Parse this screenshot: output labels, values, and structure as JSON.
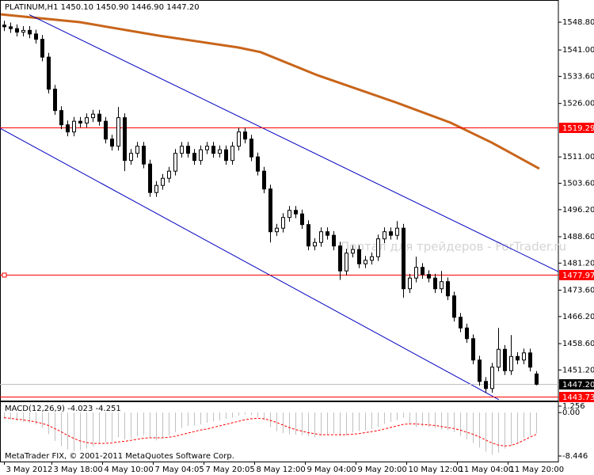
{
  "chart_data": [
    {
      "type": "candlestick",
      "title": "PLATINUM,H1  1450.10 1450.90 1446.90 1447.20",
      "watermark": "Портал для трейдеров - ForTrader.ru",
      "x": [
        0,
        2,
        4,
        6,
        8,
        10,
        12,
        14,
        16,
        18,
        20,
        22,
        24,
        26,
        28,
        30,
        32,
        34,
        36,
        38,
        40,
        42,
        44,
        46,
        48,
        50,
        52,
        54,
        56,
        58,
        60,
        62,
        64,
        66,
        68,
        70,
        72,
        74,
        76,
        78,
        80,
        82,
        84,
        86,
        88,
        90,
        92,
        94,
        96,
        98,
        100,
        102,
        104,
        106,
        108,
        110,
        112,
        114,
        116,
        118,
        120,
        122,
        124,
        126,
        128,
        130,
        132,
        134,
        136,
        138,
        140,
        142,
        144,
        146,
        148,
        150,
        152,
        154,
        156,
        158,
        160,
        162,
        164,
        166,
        168
      ],
      "open": [
        1548,
        1547.5,
        1547,
        1546,
        1546.5,
        1545.5,
        1544,
        1539,
        1530,
        1524,
        1520,
        1518,
        1521,
        1520.5,
        1522,
        1523,
        1521,
        1516,
        1514,
        1522,
        1510,
        1512,
        1514,
        1509,
        1501,
        1503,
        1505,
        1507,
        1512,
        1514,
        1512,
        1510,
        1513,
        1514,
        1512,
        1513,
        1510,
        1514,
        1518,
        1516,
        1511,
        1507,
        1502,
        1490,
        1491,
        1494,
        1496,
        1495,
        1492,
        1486,
        1487,
        1490,
        1489,
        1486,
        1479,
        1484,
        1485,
        1481,
        1482,
        1483,
        1488,
        1490,
        1489,
        1491,
        1474,
        1477,
        1480,
        1478,
        1477,
        1474,
        1476,
        1472,
        1466,
        1463,
        1460,
        1454,
        1448,
        1446,
        1452,
        1457,
        1451,
        1455,
        1454,
        1456,
        1450.1
      ],
      "high": [
        1549.2,
        1548.7,
        1548.2,
        1547.7,
        1547.7,
        1546.7,
        1545.2,
        1540.2,
        1531.2,
        1525.2,
        1521.2,
        1522.2,
        1522.2,
        1523.2,
        1524.2,
        1524.2,
        1522.2,
        1517.2,
        1525,
        1523.2,
        1513.2,
        1515.2,
        1515.2,
        1510.2,
        1504.2,
        1506.2,
        1508.2,
        1513.2,
        1515.2,
        1515.2,
        1513.2,
        1514.2,
        1515.2,
        1515.2,
        1514.2,
        1514.2,
        1515.2,
        1519.2,
        1519.2,
        1517.2,
        1512.2,
        1508.2,
        1503.2,
        1492.2,
        1495.2,
        1497.2,
        1497.2,
        1496.2,
        1493.2,
        1488.2,
        1491.2,
        1491.2,
        1490.2,
        1487.2,
        1485.2,
        1486.2,
        1486.2,
        1483.2,
        1484.2,
        1489.2,
        1491.2,
        1491.2,
        1493,
        1492.2,
        1478.2,
        1483,
        1481.2,
        1479.2,
        1478.2,
        1479,
        1477.2,
        1473.2,
        1467.2,
        1464.2,
        1461.2,
        1455.2,
        1449.2,
        1453.2,
        1463,
        1458.2,
        1461,
        1456.2,
        1457.2,
        1457.2,
        1450.9
      ],
      "low": [
        1546.3,
        1545.8,
        1544.8,
        1544.8,
        1544.3,
        1542.8,
        1537.8,
        1528.8,
        1522.8,
        1518.8,
        1516.8,
        1516.8,
        1519.3,
        1519.3,
        1520.8,
        1519.8,
        1514.8,
        1512.8,
        1512.8,
        1507,
        1508.8,
        1510.8,
        1507.8,
        1499.8,
        1499.8,
        1501.8,
        1503.8,
        1505.8,
        1510.8,
        1510.8,
        1508.8,
        1508.8,
        1511.8,
        1510.8,
        1510.8,
        1508.8,
        1508.8,
        1512.8,
        1514.8,
        1509.8,
        1505.8,
        1500.8,
        1487,
        1488.8,
        1489.8,
        1492.8,
        1493.8,
        1490.8,
        1484.8,
        1484.8,
        1485.8,
        1487.8,
        1484.8,
        1476.5,
        1477.8,
        1482.8,
        1479.8,
        1479.8,
        1480.8,
        1481.8,
        1486.8,
        1487.8,
        1487.8,
        1471.5,
        1472.8,
        1475.8,
        1476.8,
        1475.8,
        1472.8,
        1472.8,
        1470.8,
        1464.8,
        1461.8,
        1458.8,
        1452.8,
        1446.8,
        1444.8,
        1444.8,
        1450.8,
        1449.8,
        1449.8,
        1452.8,
        1452.8,
        1450.8,
        1446.9
      ],
      "close": [
        1547.5,
        1547,
        1546,
        1546.5,
        1545.5,
        1544,
        1539,
        1530,
        1524,
        1520,
        1518,
        1521,
        1520.5,
        1522,
        1523,
        1521,
        1516,
        1514,
        1522,
        1510,
        1512,
        1514,
        1509,
        1501,
        1503,
        1505,
        1507,
        1512,
        1514,
        1512,
        1510,
        1513,
        1514,
        1512,
        1513,
        1510,
        1514,
        1518,
        1516,
        1511,
        1507,
        1502,
        1490,
        1491,
        1494,
        1496,
        1495,
        1492,
        1486,
        1487,
        1490,
        1489,
        1486,
        1479,
        1484,
        1485,
        1481,
        1482,
        1483,
        1488,
        1490,
        1489,
        1491,
        1474,
        1477,
        1480,
        1478,
        1477,
        1474,
        1476,
        1472,
        1466,
        1463,
        1460,
        1454,
        1448,
        1446,
        1452,
        1457,
        1451,
        1455,
        1454,
        1456,
        1452,
        1447.2
      ],
      "up_color": "#ffffff",
      "down_color": "#000000",
      "outline_color": "#000000",
      "ma": {
        "x": [
          -1,
          24,
          49,
          74,
          81,
          99,
          124,
          141,
          154,
          169
        ],
        "values": [
          1551.0,
          1548.8,
          1545.0,
          1541.7,
          1540.4,
          1533.9,
          1526.2,
          1520.6,
          1515.0,
          1507.7
        ],
        "color": "#c8651b"
      },
      "trendlines": [
        {
          "x": [
            8,
            175
          ],
          "y": [
            1550.9,
            1478.8
          ],
          "color": "#0000c0"
        },
        {
          "x": [
            -1.25,
            156.25
          ],
          "y": [
            1519.04,
            1442.85
          ],
          "color": "#0000c0"
        }
      ],
      "hlines": [
        {
          "price": 1519.29,
          "color": "#ff0000",
          "box": "#ff0000"
        },
        {
          "price": 1477.97,
          "color": "#ff0000",
          "box": "#ff0000",
          "handle": true
        },
        {
          "price": {
            "value": 1447.2,
            "label": "1447.20"
          },
          "color": "#c0c0c0",
          "box": "#000000"
        },
        {
          "price": 1443.73,
          "color": "#ff0000",
          "box": "#ff0000"
        }
      ],
      "xlim": [
        -1.25,
        175
      ],
      "ylim": [
        1442.62,
        1554.58
      ],
      "yticks": [
        {
          "value": 1548.8,
          "label": "1548.80"
        },
        {
          "value": 1541,
          "label": "1541.00"
        },
        {
          "value": 1533.6,
          "label": "1533.60"
        },
        {
          "value": 1526,
          "label": "1526.00"
        },
        {
          "value": 1511,
          "label": "1511.00"
        },
        {
          "value": 1503.6,
          "label": "1503.60"
        },
        {
          "value": 1496.2,
          "label": "1496.20"
        },
        {
          "value": 1488.6,
          "label": "1488.60"
        },
        {
          "value": 1481.2,
          "label": "1481.20"
        },
        {
          "value": 1473.6,
          "label": "1473.60"
        },
        {
          "value": 1466.2,
          "label": "1466.20"
        },
        {
          "value": 1458.6,
          "label": "1458.60"
        },
        {
          "value": 1451.2,
          "label": "1451.20"
        }
      ]
    },
    {
      "type": "macd",
      "title": "MACD(12,26,9) -4.023 -4.251",
      "copyright": "MetaTrader FIX, © 2001-2011 MetaQuotes Software Corp.",
      "series": [
        {
          "kind": "histogram",
          "color": "#c0c0c0",
          "values": [
            -1.2,
            -1.4,
            -1.6,
            -1.8,
            -2.0,
            -2.3,
            -3.0,
            -4.2,
            -5.5,
            -6.5,
            -7.2,
            -7.5,
            -7.3,
            -7.0,
            -6.6,
            -6.0,
            -5.8,
            -5.6,
            -4.8,
            -5.2,
            -5.0,
            -4.6,
            -4.4,
            -5.0,
            -5.4,
            -5.0,
            -4.5,
            -3.8,
            -3.0,
            -2.6,
            -2.5,
            -2.3,
            -2.0,
            -1.7,
            -1.5,
            -1.2,
            -1.0,
            -0.6,
            -0.4,
            -0.5,
            -0.9,
            -1.5,
            -2.8,
            -3.6,
            -4.0,
            -4.2,
            -4.3,
            -4.4,
            -4.6,
            -4.8,
            -4.5,
            -4.2,
            -4.1,
            -4.5,
            -4.4,
            -3.9,
            -3.6,
            -3.5,
            -3.2,
            -2.8,
            -2.2,
            -1.8,
            -1.5,
            -1.0,
            -2.2,
            -2.8,
            -2.7,
            -2.8,
            -3.0,
            -3.3,
            -3.4,
            -3.8,
            -4.5,
            -5.2,
            -5.9,
            -6.8,
            -7.6,
            -8.2,
            -7.8,
            -7.0,
            -6.5,
            -5.8,
            -5.0,
            -4.5,
            -4.023
          ]
        },
        {
          "kind": "line",
          "dashed": true,
          "color": "#ff0000",
          "values": [
            -1.0,
            -1.1,
            -1.3,
            -1.4,
            -1.6,
            -1.8,
            -2.1,
            -2.5,
            -3.1,
            -3.7,
            -4.4,
            -5.0,
            -5.5,
            -5.8,
            -6.0,
            -6.0,
            -6.0,
            -5.9,
            -5.7,
            -5.6,
            -5.4,
            -5.2,
            -5.0,
            -4.9,
            -4.9,
            -4.9,
            -4.8,
            -4.6,
            -4.3,
            -4.0,
            -3.7,
            -3.4,
            -3.2,
            -2.9,
            -2.6,
            -2.3,
            -2.0,
            -1.7,
            -1.4,
            -1.2,
            -1.1,
            -1.2,
            -1.5,
            -1.9,
            -2.4,
            -2.9,
            -3.3,
            -3.6,
            -3.9,
            -4.1,
            -4.3,
            -4.3,
            -4.3,
            -4.3,
            -4.3,
            -4.2,
            -4.1,
            -3.9,
            -3.7,
            -3.5,
            -3.2,
            -2.9,
            -2.6,
            -2.3,
            -2.2,
            -2.2,
            -2.3,
            -2.4,
            -2.5,
            -2.7,
            -2.9,
            -3.1,
            -3.4,
            -3.8,
            -4.2,
            -4.7,
            -5.3,
            -5.9,
            -6.3,
            -6.5,
            -6.4,
            -6.0,
            -5.4,
            -4.8,
            -4.251
          ]
        }
      ],
      "ylim": [
        -9.52,
        2.18
      ],
      "yticks": [
        1.256,
        {
          "value": 0,
          "label": "0.00"
        },
        -8.446
      ],
      "xticks": [
        {
          "value": 0,
          "label": "3 May 2012"
        },
        {
          "value": 15,
          "label": "3 May 18:00"
        },
        {
          "value": 31,
          "label": "4 May 10:00"
        },
        {
          "value": 47,
          "label": "7 May 04:05"
        },
        {
          "value": 63,
          "label": "7 May 20:05"
        },
        {
          "value": 79,
          "label": "8 May 12:00"
        },
        {
          "value": 95,
          "label": "9 May 04:00"
        },
        {
          "value": 111,
          "label": "9 May 20:00"
        },
        {
          "value": 127,
          "label": "10 May 12:00"
        },
        {
          "value": 143,
          "label": "11 May 04:00"
        },
        {
          "value": 159,
          "label": "11 May 20:00"
        }
      ]
    }
  ]
}
